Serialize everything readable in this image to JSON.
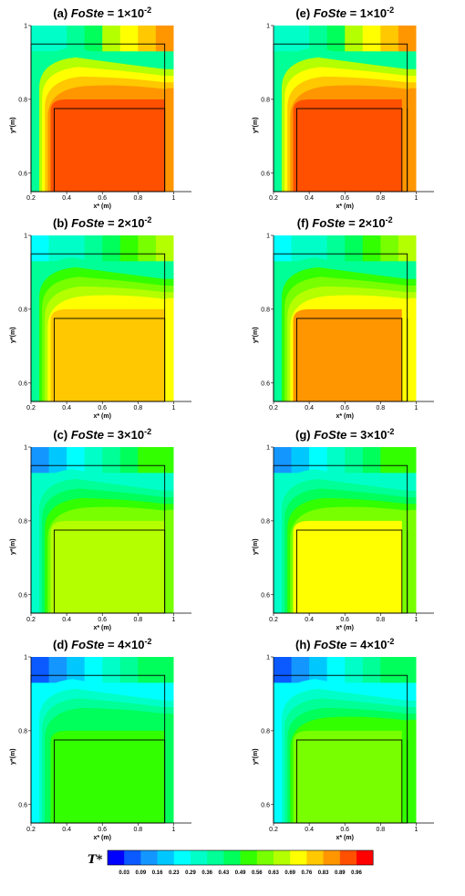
{
  "chart_data": {
    "type": "heatmap",
    "layout": "4 rows x 2 columns of contour plots",
    "xlabel": "x* (m)",
    "ylabel": "y*(m)",
    "xlim": [
      0.2,
      1.1
    ],
    "ylim": [
      0.55,
      1.0
    ],
    "x_ticks": [
      "0.2",
      "0.4",
      "0.6",
      "0.8",
      "1"
    ],
    "y_ticks": [
      "0.6",
      "0.8",
      "1"
    ],
    "colorbar": {
      "symbol": "T*",
      "levels": [
        "0.03",
        "0.09",
        "0.16",
        "0.23",
        "0.29",
        "0.36",
        "0.43",
        "0.49",
        "0.56",
        "0.63",
        "0.69",
        "0.76",
        "0.83",
        "0.89",
        "0.96"
      ],
      "colors": [
        "#0000ff",
        "#0a5aff",
        "#1496ff",
        "#00c8ff",
        "#00ffff",
        "#00ffc8",
        "#00ff96",
        "#00ff5a",
        "#32ff00",
        "#78ff00",
        "#b4ff00",
        "#ffff00",
        "#ffc800",
        "#ff9600",
        "#ff5000",
        "#ff0000"
      ]
    },
    "panels": [
      {
        "label": "(a)",
        "value_prefix": "FoSte",
        "value": "= 1×10",
        "exp": "-2",
        "inner_right_edge": 0.95,
        "colors": {
          "top": [
            "#00ffc8",
            "#00ffc8",
            "#00ff96",
            "#00ff5a",
            "#b4ff00",
            "#ffff00",
            "#ffc800",
            "#ff9600"
          ],
          "bands": [
            "#00ff96",
            "#b4ff00",
            "#ffff00",
            "#ffc800",
            "#ff9600"
          ],
          "core": "#ff5000",
          "right": "#ff9600"
        }
      },
      {
        "label": "(e)",
        "value_prefix": "FoSte",
        "value": "= 1×10",
        "exp": "-2",
        "inner_right_edge": 0.92,
        "colors": {
          "top": [
            "#00ffc8",
            "#00ffc8",
            "#00ff96",
            "#00ff5a",
            "#b4ff00",
            "#ffff00",
            "#ffc800",
            "#ff9600"
          ],
          "bands": [
            "#00ff96",
            "#b4ff00",
            "#ffff00",
            "#ffc800",
            "#ff9600"
          ],
          "core": "#ff5000",
          "right": "#ff9600"
        }
      },
      {
        "label": "(b)",
        "value_prefix": "FoSte",
        "value": "= 2×10",
        "exp": "-2",
        "inner_right_edge": 0.95,
        "colors": {
          "top": [
            "#00ffff",
            "#00ffc8",
            "#00ffc8",
            "#00ff96",
            "#00ff5a",
            "#32ff00",
            "#78ff00",
            "#b4ff00"
          ],
          "bands": [
            "#00ff96",
            "#32ff00",
            "#78ff00",
            "#b4ff00",
            "#ffff00"
          ],
          "core": "#ffc800",
          "right": "#ffff00"
        }
      },
      {
        "label": "(f)",
        "value_prefix": "FoSte",
        "value": "= 2×10",
        "exp": "-2",
        "inner_right_edge": 0.92,
        "colors": {
          "top": [
            "#00ffff",
            "#00ffc8",
            "#00ffc8",
            "#00ff96",
            "#00ff5a",
            "#32ff00",
            "#78ff00",
            "#b4ff00"
          ],
          "bands": [
            "#00ff96",
            "#32ff00",
            "#78ff00",
            "#b4ff00",
            "#ffff00"
          ],
          "core": "#ff9600",
          "right": "#ffff00"
        }
      },
      {
        "label": "(c)",
        "value_prefix": "FoSte",
        "value": "= 3×10",
        "exp": "-2",
        "inner_right_edge": 0.95,
        "colors": {
          "top": [
            "#1496ff",
            "#00c8ff",
            "#00ffff",
            "#00ffc8",
            "#00ff96",
            "#00ff5a",
            "#32ff00",
            "#32ff00"
          ],
          "bands": [
            "#00ffc8",
            "#00ff96",
            "#00ff5a",
            "#32ff00",
            "#78ff00"
          ],
          "core": "#b4ff00",
          "right": "#78ff00"
        }
      },
      {
        "label": "(g)",
        "value_prefix": "FoSte",
        "value": "= 3×10",
        "exp": "-2",
        "inner_right_edge": 0.92,
        "colors": {
          "top": [
            "#1496ff",
            "#00c8ff",
            "#00ffff",
            "#00ffc8",
            "#00ff96",
            "#00ff5a",
            "#32ff00",
            "#32ff00"
          ],
          "bands": [
            "#00ffc8",
            "#00ff96",
            "#00ff5a",
            "#32ff00",
            "#78ff00"
          ],
          "core": "#ffff00",
          "right": "#78ff00"
        }
      },
      {
        "label": "(d)",
        "value_prefix": "FoSte",
        "value": "= 4×10",
        "exp": "-2",
        "inner_right_edge": 0.95,
        "colors": {
          "top": [
            "#0a5aff",
            "#1496ff",
            "#00c8ff",
            "#00ffff",
            "#00ffc8",
            "#00ff96",
            "#00ff5a",
            "#00ff5a"
          ],
          "bands": [
            "#00ffff",
            "#00ffc8",
            "#00ff96",
            "#00ff5a",
            "#00ff5a"
          ],
          "core": "#32ff00",
          "right": "#00ff5a"
        }
      },
      {
        "label": "(h)",
        "value_prefix": "FoSte",
        "value": "= 4×10",
        "exp": "-2",
        "inner_right_edge": 0.92,
        "colors": {
          "top": [
            "#0a5aff",
            "#1496ff",
            "#00c8ff",
            "#00ffff",
            "#00ffc8",
            "#00ff96",
            "#00ff5a",
            "#00ff5a"
          ],
          "bands": [
            "#00ffff",
            "#00ffc8",
            "#00ff96",
            "#00ff5a",
            "#32ff00"
          ],
          "core": "#78ff00",
          "right": "#32ff00"
        }
      }
    ]
  }
}
